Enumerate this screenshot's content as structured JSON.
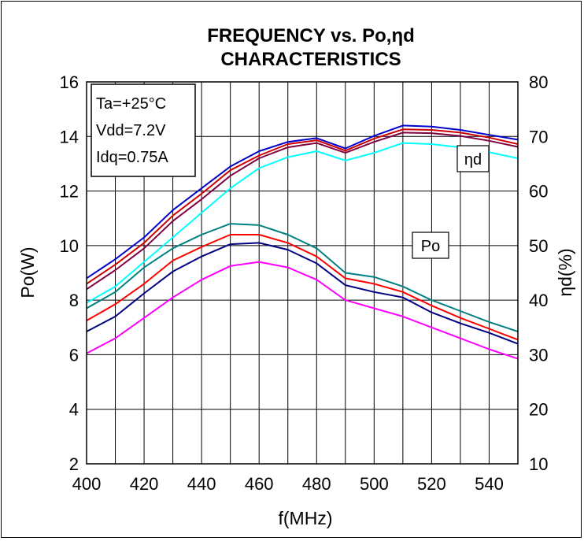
{
  "chart_data": {
    "type": "line",
    "title_line1": "FREQUENCY vs. Po,ηd",
    "title_line2": "CHARACTERISTICS",
    "xlabel": "f(MHz)",
    "ylabel_left": "Po(W)",
    "ylabel_right": "ηd(%)",
    "xlim": [
      400,
      550
    ],
    "ylim_left": [
      2,
      16
    ],
    "ylim_right": [
      10,
      80
    ],
    "x_ticks": [
      "400",
      "420",
      "440",
      "460",
      "480",
      "500",
      "520",
      "540"
    ],
    "y_ticks_left": [
      "2",
      "4",
      "6",
      "8",
      "10",
      "12",
      "14",
      "16"
    ],
    "y_ticks_right": [
      "10",
      "20",
      "30",
      "40",
      "50",
      "60",
      "70",
      "80"
    ],
    "grid": true,
    "conditions": [
      "Ta=+25°C",
      "Vdd=7.2V",
      "Idq=0.75A"
    ],
    "group_labels": {
      "efficiency": "ηd",
      "power": "Po"
    },
    "x": [
      400,
      410,
      420,
      430,
      440,
      450,
      460,
      470,
      480,
      490,
      500,
      510,
      520,
      530,
      540,
      550
    ],
    "series": [
      {
        "group": "efficiency",
        "axis": "right",
        "color": "#0000cc",
        "values": [
          44,
          47.5,
          51.5,
          56.5,
          60.5,
          64.5,
          67.3,
          69,
          69.7,
          67.8,
          70.1,
          72,
          71.8,
          71.2,
          70.3,
          69.4
        ]
      },
      {
        "group": "efficiency",
        "axis": "right",
        "color": "#cc0000",
        "values": [
          43,
          46.5,
          50.5,
          55.5,
          59.5,
          63.8,
          66.5,
          68.6,
          69.3,
          67.4,
          69.6,
          71.3,
          71.2,
          70.7,
          69.8,
          68.6
        ]
      },
      {
        "group": "efficiency",
        "axis": "right",
        "color": "#800040",
        "values": [
          42,
          45.5,
          49.5,
          54.5,
          58.5,
          62.8,
          66,
          68,
          68.8,
          67,
          69,
          70.7,
          70.6,
          70.1,
          69.2,
          68.1
        ]
      },
      {
        "group": "efficiency",
        "axis": "right",
        "color": "#00ffff",
        "values": [
          39.5,
          42.5,
          47,
          51.5,
          56,
          60.5,
          64.2,
          66.2,
          67.3,
          65.6,
          67,
          68.8,
          68.6,
          68,
          67.1,
          66
        ]
      },
      {
        "group": "power",
        "axis": "left",
        "color": "#008080",
        "values": [
          7.7,
          8.3,
          9.2,
          9.9,
          10.4,
          10.8,
          10.75,
          10.4,
          9.9,
          9.0,
          8.85,
          8.5,
          8.0,
          7.6,
          7.2,
          6.85
        ]
      },
      {
        "group": "power",
        "axis": "left",
        "color": "#ff0000",
        "values": [
          7.25,
          7.85,
          8.6,
          9.45,
          9.95,
          10.4,
          10.4,
          10.1,
          9.6,
          8.8,
          8.6,
          8.3,
          7.8,
          7.35,
          6.95,
          6.55
        ]
      },
      {
        "group": "power",
        "axis": "left",
        "color": "#000080",
        "values": [
          6.85,
          7.4,
          8.25,
          9.05,
          9.6,
          10.05,
          10.1,
          9.85,
          9.35,
          8.55,
          8.3,
          8.1,
          7.55,
          7.15,
          6.8,
          6.4
        ]
      },
      {
        "group": "power",
        "axis": "left",
        "color": "#ff00ff",
        "values": [
          6.05,
          6.6,
          7.35,
          8.1,
          8.75,
          9.25,
          9.4,
          9.2,
          8.75,
          8.0,
          7.7,
          7.4,
          7.0,
          6.6,
          6.2,
          5.85
        ]
      }
    ]
  }
}
